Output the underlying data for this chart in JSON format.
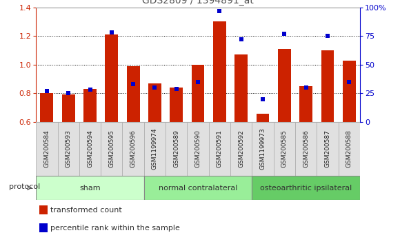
{
  "title": "GDS2809 / 1394891_at",
  "categories": [
    "GSM200584",
    "GSM200593",
    "GSM200594",
    "GSM200595",
    "GSM200596",
    "GSM1199974",
    "GSM200589",
    "GSM200590",
    "GSM200591",
    "GSM200592",
    "GSM1199973",
    "GSM200585",
    "GSM200586",
    "GSM200587",
    "GSM200588"
  ],
  "bar_values": [
    0.8,
    0.79,
    0.83,
    1.21,
    0.99,
    0.87,
    0.84,
    1.0,
    1.3,
    1.07,
    0.66,
    1.11,
    0.85,
    1.1,
    1.03
  ],
  "marker_values": [
    27,
    25,
    28,
    78,
    33,
    30,
    29,
    35,
    97,
    72,
    20,
    77,
    30,
    75,
    35
  ],
  "bar_color": "#cc2200",
  "marker_color": "#0000cc",
  "ylim_left": [
    0.6,
    1.4
  ],
  "ylim_right": [
    0,
    100
  ],
  "yticks_left": [
    0.6,
    0.8,
    1.0,
    1.2,
    1.4
  ],
  "yticks_right": [
    0,
    25,
    50,
    75,
    100
  ],
  "yticklabels_right": [
    "0",
    "25",
    "50",
    "75",
    "100%"
  ],
  "groups": [
    {
      "label": "sham",
      "start": 0,
      "end": 5
    },
    {
      "label": "normal contralateral",
      "start": 5,
      "end": 10
    },
    {
      "label": "osteoarthritic ipsilateral",
      "start": 10,
      "end": 15
    }
  ],
  "group_colors": [
    "#ccffcc",
    "#99ee99",
    "#66cc66"
  ],
  "protocol_label": "protocol",
  "legend_bar_label": "transformed count",
  "legend_marker_label": "percentile rank within the sample",
  "title_color": "#555555",
  "bar_bottom": 0.6
}
